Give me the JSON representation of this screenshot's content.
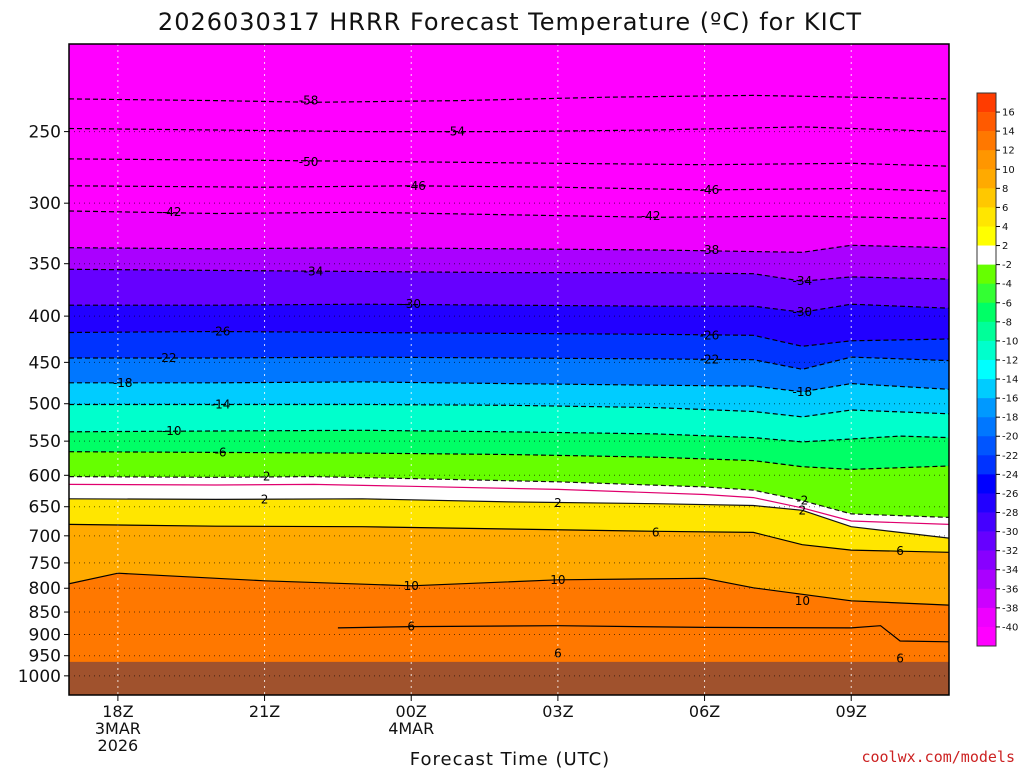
{
  "chart_data": {
    "type": "heatmap",
    "title": "2026030317 HRRR Forecast Temperature (ºC) for KICT",
    "xlabel": "Forecast Time (UTC)",
    "ylabel": "",
    "units": "°C",
    "x_range_hours": [
      -1,
      17
    ],
    "x_ticks": [
      {
        "hour": 0,
        "line1": "18Z",
        "line2": "3MAR",
        "line3": "2026"
      },
      {
        "hour": 3,
        "line1": "21Z",
        "line2": "",
        "line3": ""
      },
      {
        "hour": 6,
        "line1": "00Z",
        "line2": "4MAR",
        "line3": ""
      },
      {
        "hour": 9,
        "line1": "03Z",
        "line2": "",
        "line3": ""
      },
      {
        "hour": 12,
        "line1": "06Z",
        "line2": "",
        "line3": ""
      },
      {
        "hour": 15,
        "line1": "09Z",
        "line2": "",
        "line3": ""
      }
    ],
    "y_pressure_range_hPa": [
      200,
      1050
    ],
    "y_ticks": [
      250,
      300,
      350,
      400,
      450,
      500,
      550,
      600,
      650,
      700,
      750,
      800,
      850,
      900,
      950,
      1000
    ],
    "ground_pressure_hPa": 965,
    "grid": true,
    "colorbar": {
      "ticks": [
        16,
        14,
        12,
        10,
        8,
        6,
        4,
        2,
        -2,
        -4,
        -6,
        -8,
        -10,
        -12,
        -14,
        -16,
        -18,
        -20,
        -22,
        -24,
        -26,
        -28,
        -30,
        -32,
        -34,
        -36,
        -38,
        -40
      ],
      "colors": [
        "#ff3c00",
        "#ff5a00",
        "#ff7800",
        "#ff9600",
        "#ffaa00",
        "#ffc800",
        "#ffe600",
        "#ffff00",
        "#ffffff",
        "#66ff00",
        "#33ff33",
        "#00ff66",
        "#00ff99",
        "#00ffcc",
        "#00ffff",
        "#00ccff",
        "#0099ff",
        "#0077ff",
        "#0055ff",
        "#0033ff",
        "#0000ff",
        "#2200ff",
        "#4400ff",
        "#6600ff",
        "#8800ff",
        "#aa00ff",
        "#cc00ff",
        "#ee00ff",
        "#ff00ff"
      ]
    },
    "contours": [
      {
        "temp": -58,
        "points": [
          [
            -1,
            230
          ],
          [
            2,
            231
          ],
          [
            4,
            232
          ],
          [
            7,
            231
          ],
          [
            10,
            229
          ],
          [
            13,
            228
          ],
          [
            17,
            230
          ]
        ]
      },
      {
        "temp": -54,
        "points": [
          [
            -1,
            248
          ],
          [
            2,
            249
          ],
          [
            5,
            250
          ],
          [
            8,
            250
          ],
          [
            11,
            249
          ],
          [
            14,
            247
          ],
          [
            17,
            250
          ]
        ]
      },
      {
        "temp": -50,
        "points": [
          [
            -1,
            268
          ],
          [
            3,
            269
          ],
          [
            6,
            270
          ],
          [
            9,
            271
          ],
          [
            12,
            272
          ],
          [
            15,
            271
          ],
          [
            17,
            273
          ]
        ]
      },
      {
        "temp": -46,
        "points": [
          [
            -1,
            287
          ],
          [
            3,
            288
          ],
          [
            6,
            287
          ],
          [
            9,
            288
          ],
          [
            12,
            290
          ],
          [
            15,
            289
          ],
          [
            17,
            291
          ]
        ]
      },
      {
        "temp": -42,
        "points": [
          [
            -1,
            306
          ],
          [
            2,
            308
          ],
          [
            5,
            307
          ],
          [
            8,
            309
          ],
          [
            11,
            311
          ],
          [
            14,
            310
          ],
          [
            17,
            312
          ]
        ]
      },
      {
        "temp": -38,
        "points": [
          [
            -1,
            336
          ],
          [
            2,
            337
          ],
          [
            5,
            336
          ],
          [
            8,
            337
          ],
          [
            11,
            338
          ],
          [
            14,
            340
          ],
          [
            15,
            334
          ],
          [
            17,
            336
          ]
        ]
      },
      {
        "temp": -34,
        "points": [
          [
            -1,
            355
          ],
          [
            2,
            356
          ],
          [
            5,
            357
          ],
          [
            8,
            358
          ],
          [
            11,
            358
          ],
          [
            13,
            359
          ],
          [
            14,
            366
          ],
          [
            15,
            362
          ],
          [
            17,
            364
          ]
        ]
      },
      {
        "temp": -30,
        "points": [
          [
            -1,
            389
          ],
          [
            2,
            389
          ],
          [
            5,
            388
          ],
          [
            8,
            389
          ],
          [
            11,
            390
          ],
          [
            13,
            390
          ],
          [
            14,
            396
          ],
          [
            15,
            388
          ],
          [
            17,
            392
          ]
        ]
      },
      {
        "temp": -26,
        "points": [
          [
            -1,
            417
          ],
          [
            2,
            416
          ],
          [
            5,
            417
          ],
          [
            8,
            418
          ],
          [
            11,
            419
          ],
          [
            13,
            420
          ],
          [
            14,
            432
          ],
          [
            15,
            426
          ],
          [
            17,
            424
          ]
        ]
      },
      {
        "temp": -22,
        "points": [
          [
            -1,
            445
          ],
          [
            2,
            445
          ],
          [
            5,
            444
          ],
          [
            8,
            445
          ],
          [
            11,
            446
          ],
          [
            13,
            447
          ],
          [
            14,
            458
          ],
          [
            15,
            444
          ],
          [
            17,
            448
          ]
        ]
      },
      {
        "temp": -18,
        "points": [
          [
            -1,
            474
          ],
          [
            2,
            474
          ],
          [
            5,
            473
          ],
          [
            8,
            475
          ],
          [
            11,
            477
          ],
          [
            13,
            478
          ],
          [
            14,
            485
          ],
          [
            15,
            475
          ],
          [
            17,
            482
          ]
        ]
      },
      {
        "temp": -14,
        "points": [
          [
            -1,
            501
          ],
          [
            2,
            501
          ],
          [
            5,
            501
          ],
          [
            8,
            502
          ],
          [
            11,
            505
          ],
          [
            13,
            510
          ],
          [
            14,
            517
          ],
          [
            15,
            508
          ],
          [
            17,
            513
          ]
        ]
      },
      {
        "temp": -10,
        "points": [
          [
            -1,
            537
          ],
          [
            2,
            536
          ],
          [
            5,
            535
          ],
          [
            8,
            537
          ],
          [
            11,
            540
          ],
          [
            13,
            545
          ],
          [
            14,
            551
          ],
          [
            16,
            543
          ],
          [
            17,
            545
          ]
        ]
      },
      {
        "temp": -6,
        "points": [
          [
            -1,
            565
          ],
          [
            2,
            566
          ],
          [
            5,
            567
          ],
          [
            8,
            569
          ],
          [
            11,
            573
          ],
          [
            13,
            578
          ],
          [
            14,
            587
          ],
          [
            15,
            591
          ],
          [
            17,
            586
          ]
        ]
      },
      {
        "temp": -2,
        "points": [
          [
            -1,
            602
          ],
          [
            2,
            603
          ],
          [
            4,
            602
          ],
          [
            6,
            605
          ],
          [
            9,
            610
          ],
          [
            12,
            618
          ],
          [
            13,
            623
          ],
          [
            14,
            640
          ],
          [
            15,
            662
          ],
          [
            17,
            668
          ]
        ]
      },
      {
        "temp": 2,
        "points": [
          [
            -1,
            637
          ],
          [
            2,
            638
          ],
          [
            5,
            637
          ],
          [
            8,
            642
          ],
          [
            11,
            645
          ],
          [
            13,
            648
          ],
          [
            14,
            656
          ],
          [
            15,
            684
          ],
          [
            17,
            704
          ]
        ]
      },
      {
        "temp": 6,
        "points": [
          [
            -1,
            680
          ],
          [
            2,
            683
          ],
          [
            5,
            684
          ],
          [
            8,
            688
          ],
          [
            11,
            692
          ],
          [
            13,
            694
          ],
          [
            14,
            716
          ],
          [
            15,
            726
          ],
          [
            17,
            730
          ]
        ]
      },
      {
        "temp": 10,
        "points": [
          [
            -1,
            791
          ],
          [
            0,
            770
          ],
          [
            3,
            785
          ],
          [
            6,
            795
          ],
          [
            9,
            783
          ],
          [
            12,
            780
          ],
          [
            13,
            799
          ],
          [
            15,
            826
          ],
          [
            17,
            835
          ]
        ]
      },
      {
        "temp": 6,
        "points": [
          [
            4.5,
            885
          ],
          [
            6,
            882
          ],
          [
            9,
            880
          ],
          [
            12,
            884
          ],
          [
            15,
            885
          ],
          [
            15.6,
            880
          ],
          [
            16,
            915
          ],
          [
            17,
            917
          ]
        ]
      }
    ],
    "contour_labels": [
      {
        "text": "-58",
        "hour": 3.9,
        "p": 231
      },
      {
        "text": "-54",
        "hour": 6.9,
        "p": 250
      },
      {
        "text": "-50",
        "hour": 3.9,
        "p": 270
      },
      {
        "text": "-46",
        "hour": 6.1,
        "p": 287
      },
      {
        "text": "-46",
        "hour": 12.1,
        "p": 290
      },
      {
        "text": "-42",
        "hour": 1.1,
        "p": 307
      },
      {
        "text": "-42",
        "hour": 10.9,
        "p": 310
      },
      {
        "text": "-38",
        "hour": 12.1,
        "p": 338
      },
      {
        "text": "-34",
        "hour": 4.0,
        "p": 357
      },
      {
        "text": "-34",
        "hour": 14.0,
        "p": 366
      },
      {
        "text": "-30",
        "hour": 6.0,
        "p": 388
      },
      {
        "text": "-30",
        "hour": 14.0,
        "p": 396
      },
      {
        "text": "-26",
        "hour": 2.1,
        "p": 416
      },
      {
        "text": "-26",
        "hour": 12.1,
        "p": 420
      },
      {
        "text": "-22",
        "hour": 1.0,
        "p": 445
      },
      {
        "text": "-22",
        "hour": 12.1,
        "p": 447
      },
      {
        "text": "-18",
        "hour": 0.1,
        "p": 474
      },
      {
        "text": "-18",
        "hour": 14.0,
        "p": 485
      },
      {
        "text": "-14",
        "hour": 2.1,
        "p": 501
      },
      {
        "text": "-10",
        "hour": 1.1,
        "p": 536
      },
      {
        "text": "-6",
        "hour": 2.1,
        "p": 566
      },
      {
        "text": "-2",
        "hour": 3.0,
        "p": 602
      },
      {
        "text": "2",
        "hour": 3.0,
        "p": 638
      },
      {
        "text": "2",
        "hour": 9.0,
        "p": 644
      },
      {
        "text": "-2",
        "hour": 14.0,
        "p": 640
      },
      {
        "text": "2",
        "hour": 14.0,
        "p": 656
      },
      {
        "text": "6",
        "hour": 11.0,
        "p": 694
      },
      {
        "text": "6",
        "hour": 16.0,
        "p": 728
      },
      {
        "text": "10",
        "hour": 6.0,
        "p": 795
      },
      {
        "text": "10",
        "hour": 9.0,
        "p": 783
      },
      {
        "text": "10",
        "hour": 14.0,
        "p": 826
      },
      {
        "text": "6",
        "hour": 6.0,
        "p": 882
      },
      {
        "text": "6",
        "hour": 9.0,
        "p": 945
      },
      {
        "text": "6",
        "hour": 16.0,
        "p": 957
      }
    ]
  },
  "credit": "coolwx.com/models"
}
